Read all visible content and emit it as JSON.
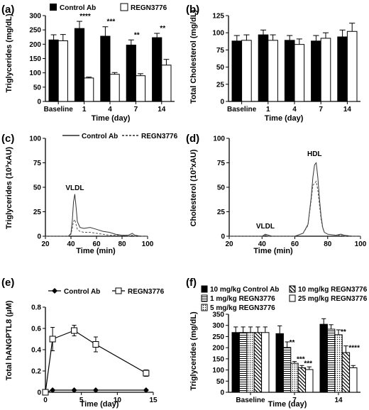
{
  "panels": [
    {
      "id": "a",
      "label": "(a)",
      "chart_data": {
        "type": "bar",
        "ylabel": "Triglycerides (mg/dL)",
        "xlabel": "Time (day)",
        "categories": [
          "Baseline",
          "1",
          "4",
          "7",
          "14"
        ],
        "ylim": [
          0,
          300
        ],
        "yticks": [
          0,
          50,
          100,
          150,
          200,
          250,
          300
        ],
        "legend": "top",
        "series": [
          {
            "name": "Control Ab",
            "fill": "#000000",
            "values": [
              215,
              255,
              228,
              197,
              223
            ],
            "errors": [
              18,
              25,
              33,
              18,
              15
            ]
          },
          {
            "name": "REGN3776",
            "fill": "#ffffff",
            "values": [
              212,
              82,
              95,
              90,
              127
            ],
            "errors": [
              22,
              3,
              6,
              7,
              20
            ]
          }
        ],
        "annotations": [
          "****",
          "***",
          "**",
          "**"
        ]
      }
    },
    {
      "id": "b",
      "label": "(b)",
      "chart_data": {
        "type": "bar",
        "ylabel": "Total Cholesterol (mg/dL)",
        "xlabel": "Time (day)",
        "categories": [
          "Baseline",
          "1",
          "4",
          "7",
          "14"
        ],
        "ylim": [
          0,
          125
        ],
        "yticks": [
          0,
          25,
          50,
          75,
          100,
          125
        ],
        "series": [
          {
            "name": "Control Ab",
            "fill": "#000000",
            "values": [
              88,
              97,
              89,
              88,
              94
            ],
            "errors": [
              8,
              7,
              7,
              8,
              10
            ]
          },
          {
            "name": "REGN3776",
            "fill": "#ffffff",
            "values": [
              89,
              89,
              83,
              92,
              102
            ],
            "errors": [
              8,
              8,
              8,
              8,
              12
            ]
          }
        ]
      }
    },
    {
      "id": "c",
      "label": "(c)",
      "chart_data": {
        "type": "line",
        "ylabel": "Triglycerides (10³xAU)",
        "xlabel": "Time (min)",
        "xlim": [
          20,
          100
        ],
        "ylim": [
          0,
          100
        ],
        "xticks": [
          20,
          40,
          60,
          80,
          100
        ],
        "yticks": [
          0,
          25,
          50,
          75,
          100
        ],
        "legend": "top",
        "annotation": "VLDL",
        "series": [
          {
            "name": "Control Ab",
            "dash": "",
            "points": [
              [
                20,
                0
              ],
              [
                38,
                0
              ],
              [
                40,
                3
              ],
              [
                41,
                15
              ],
              [
                42,
                35
              ],
              [
                43,
                43
              ],
              [
                44,
                30
              ],
              [
                45,
                15
              ],
              [
                47,
                9
              ],
              [
                50,
                8
              ],
              [
                55,
                9
              ],
              [
                60,
                7
              ],
              [
                65,
                5
              ],
              [
                70,
                4
              ],
              [
                75,
                2
              ],
              [
                80,
                1
              ],
              [
                85,
                1
              ],
              [
                88,
                3
              ],
              [
                90,
                1
              ],
              [
                95,
                0
              ],
              [
                100,
                0
              ]
            ]
          },
          {
            "name": "REGN3776",
            "dash": "3,2",
            "points": [
              [
                20,
                0
              ],
              [
                38,
                0
              ],
              [
                40,
                2
              ],
              [
                41,
                8
              ],
              [
                42,
                15
              ],
              [
                43,
                17
              ],
              [
                44,
                12
              ],
              [
                45,
                7
              ],
              [
                47,
                5
              ],
              [
                50,
                4
              ],
              [
                55,
                4
              ],
              [
                60,
                3
              ],
              [
                65,
                2
              ],
              [
                70,
                1
              ],
              [
                75,
                1
              ],
              [
                80,
                1
              ],
              [
                85,
                0
              ],
              [
                88,
                1
              ],
              [
                90,
                0
              ],
              [
                95,
                0
              ],
              [
                100,
                0
              ]
            ]
          }
        ]
      }
    },
    {
      "id": "d",
      "label": "(d)",
      "chart_data": {
        "type": "line",
        "ylabel": "Cholesterol (10³xAU)",
        "xlabel": "Time (min)",
        "xlim": [
          20,
          100
        ],
        "ylim": [
          0,
          100
        ],
        "xticks": [
          20,
          40,
          60,
          80,
          100
        ],
        "yticks": [
          0,
          25,
          50,
          75,
          100
        ],
        "annotations": [
          "VLDL",
          "HDL"
        ],
        "series": [
          {
            "name": "Control Ab",
            "dash": "",
            "points": [
              [
                20,
                0
              ],
              [
                40,
                0
              ],
              [
                42,
                2
              ],
              [
                44,
                1
              ],
              [
                46,
                0
              ],
              [
                60,
                0
              ],
              [
                65,
                3
              ],
              [
                68,
                12
              ],
              [
                70,
                40
              ],
              [
                71,
                60
              ],
              [
                72,
                73
              ],
              [
                73,
                75
              ],
              [
                74,
                60
              ],
              [
                75,
                38
              ],
              [
                76,
                20
              ],
              [
                77,
                9
              ],
              [
                78,
                4
              ],
              [
                80,
                2
              ],
              [
                85,
                1
              ],
              [
                88,
                2
              ],
              [
                90,
                1
              ],
              [
                95,
                0
              ],
              [
                100,
                0
              ]
            ]
          },
          {
            "name": "REGN3776",
            "dash": "3,2",
            "points": [
              [
                20,
                0
              ],
              [
                40,
                0
              ],
              [
                42,
                1
              ],
              [
                44,
                0
              ],
              [
                46,
                0
              ],
              [
                60,
                0
              ],
              [
                65,
                3
              ],
              [
                68,
                11
              ],
              [
                70,
                37
              ],
              [
                71,
                52
              ],
              [
                72,
                54
              ],
              [
                73,
                56
              ],
              [
                74,
                47
              ],
              [
                75,
                32
              ],
              [
                76,
                17
              ],
              [
                77,
                8
              ],
              [
                78,
                4
              ],
              [
                80,
                2
              ],
              [
                85,
                1
              ],
              [
                88,
                1
              ],
              [
                90,
                0
              ],
              [
                95,
                0
              ],
              [
                100,
                0
              ]
            ]
          }
        ]
      }
    },
    {
      "id": "e",
      "label": "(e)",
      "chart_data": {
        "type": "line",
        "ylabel": "Total hANGPTL8 (μM)",
        "xlabel": "Time (day)",
        "xlim": [
          0,
          15
        ],
        "ylim": [
          0,
          0.8
        ],
        "xticks": [
          0,
          5,
          10,
          15
        ],
        "yticks": [
          0,
          0.2,
          0.4,
          0.6,
          0.8
        ],
        "yticklabels": [
          "0",
          "0.2",
          "0.4",
          "0.6",
          "0.8"
        ],
        "legend": "top",
        "series": [
          {
            "name": "Control Ab",
            "marker": "diamond",
            "x": [
              0,
              1,
              4,
              7,
              14
            ],
            "y": [
              0,
              0.02,
              0.02,
              0.02,
              0.02
            ],
            "err": [
              0,
              0,
              0,
              0,
              0
            ]
          },
          {
            "name": "REGN3776",
            "marker": "square",
            "x": [
              0,
              1,
              4,
              7,
              14
            ],
            "y": [
              0,
              0.5,
              0.58,
              0.45,
              0.18
            ],
            "err": [
              0,
              0.11,
              0.05,
              0.07,
              0.03
            ]
          }
        ]
      }
    },
    {
      "id": "f",
      "label": "(f)",
      "chart_data": {
        "type": "bar",
        "ylabel": "Triglycerides (mg/dL)",
        "xlabel": "Time (day)",
        "categories": [
          "Baseline",
          "7",
          "14"
        ],
        "ylim": [
          0,
          350
        ],
        "yticks": [
          0,
          50,
          100,
          150,
          200,
          250,
          300,
          350
        ],
        "legend": "top",
        "series": [
          {
            "name": "10 mg/kg Control Ab",
            "pattern": "solid",
            "values": [
              268,
              263,
              305
            ],
            "errors": [
              25,
              35,
              25
            ]
          },
          {
            "name": "1 mg/kg REGN3776",
            "pattern": "hlines",
            "values": [
              268,
              201,
              283
            ],
            "errors": [
              25,
              25,
              20
            ]
          },
          {
            "name": "5 mg/kg REGN3776",
            "pattern": "dots",
            "values": [
              268,
              130,
              258
            ],
            "errors": [
              25,
              8,
              22
            ]
          },
          {
            "name": "10 mg/kg REGN3776",
            "pattern": "diag",
            "values": [
              268,
              110,
              178
            ],
            "errors": [
              25,
              10,
              30
            ]
          },
          {
            "name": "25 mg/kg REGN3776",
            "pattern": "empty",
            "values": [
              268,
              102,
              110
            ],
            "errors": [
              25,
              12,
              10
            ]
          }
        ],
        "annotations": [
          "**",
          "***",
          "***",
          "**",
          "****"
        ]
      }
    }
  ]
}
